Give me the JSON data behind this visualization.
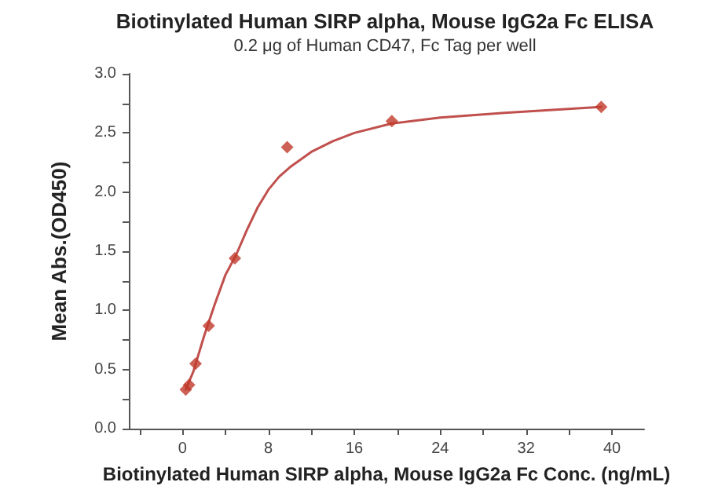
{
  "chart_data": {
    "type": "scatter",
    "title": "Biotinylated Human SIRP alpha, Mouse IgG2a Fc ELISA",
    "subtitle": "0.2 μg of Human CD47, Fc Tag per well",
    "xlabel": "Biotinylated Human SIRP alpha, Mouse IgG2a Fc Conc. (ng/mL)",
    "ylabel": "Mean Abs.(OD450)",
    "series": [
      {
        "color": "#c0392b",
        "marker": "diamond",
        "x": [
          0.3,
          0.61,
          1.22,
          2.44,
          4.88,
          9.75,
          19.5,
          39
        ],
        "values": [
          0.33,
          0.37,
          0.55,
          0.87,
          1.44,
          2.38,
          2.6,
          2.72
        ]
      },
      {
        "type": "line",
        "color": "#c0504d",
        "marker": "none",
        "line_style": "solid",
        "x": [
          0.3,
          1,
          2,
          3,
          4,
          5,
          6,
          7,
          8,
          9,
          10,
          12,
          14,
          16,
          19.5,
          24,
          30,
          39
        ],
        "values": [
          0.33,
          0.48,
          0.78,
          1.05,
          1.3,
          1.47,
          1.68,
          1.87,
          2.02,
          2.13,
          2.21,
          2.34,
          2.43,
          2.5,
          2.58,
          2.63,
          2.67,
          2.72
        ]
      }
    ],
    "xlim": [
      -5,
      43
    ],
    "xticks": [
      {
        "value": -4,
        "label": null
      },
      0,
      {
        "value": 4,
        "label": null
      },
      8,
      {
        "value": 12,
        "label": null
      },
      16,
      {
        "value": 20,
        "label": null
      },
      24,
      {
        "value": 28,
        "label": null
      },
      32,
      {
        "value": 36,
        "label": null
      },
      40
    ],
    "ylim": [
      0,
      3
    ],
    "yticks": [
      {
        "value": 0,
        "label": "0.0"
      },
      {
        "value": 0.25,
        "label": null
      },
      {
        "value": 0.5,
        "label": "0.5"
      },
      {
        "value": 0.75,
        "label": null
      },
      {
        "value": 1,
        "label": "1.0"
      },
      {
        "value": 1.25,
        "label": null
      },
      {
        "value": 1.5,
        "label": "1.5"
      },
      {
        "value": 1.75,
        "label": null
      },
      {
        "value": 2,
        "label": "2.0"
      },
      {
        "value": 2.25,
        "label": null
      },
      {
        "value": 2.5,
        "label": "2.5"
      },
      {
        "value": 2.75,
        "label": null
      },
      {
        "value": 3,
        "label": "3.0"
      }
    ],
    "grid": false
  }
}
